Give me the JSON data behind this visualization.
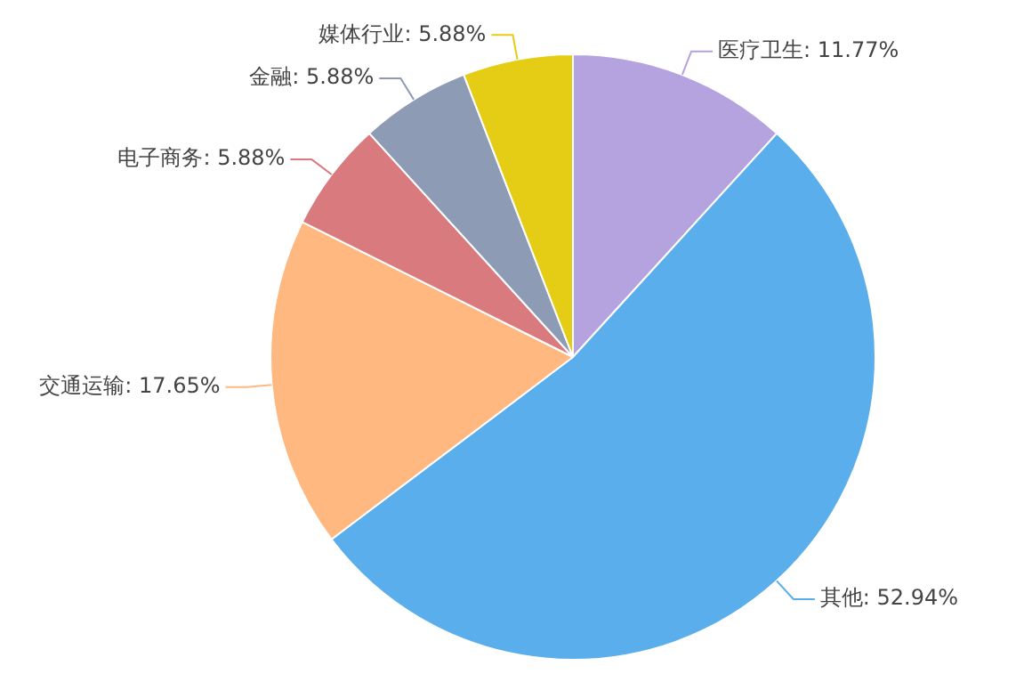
{
  "chart_data": {
    "type": "pie",
    "categories": [
      "医疗卫生",
      "其他",
      "交通运输",
      "电子商务",
      "金融",
      "媒体行业"
    ],
    "values": [
      11.77,
      52.94,
      17.65,
      5.88,
      5.88,
      5.88
    ],
    "value_labels": [
      "11.77%",
      "52.94%",
      "17.65%",
      "5.88%",
      "5.88%",
      "5.88%"
    ],
    "colors": [
      "#b5a3e0",
      "#5aaeeb",
      "#ffb880",
      "#d97a7e",
      "#8e9bb5",
      "#e5cc15"
    ],
    "legend": false
  }
}
